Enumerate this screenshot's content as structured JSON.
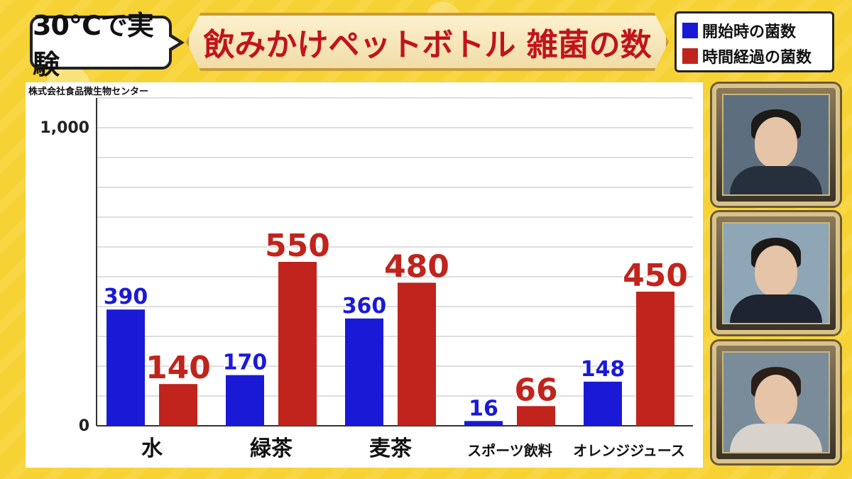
{
  "header": {
    "tag": "30℃で実験",
    "title": "飲みかけペットボトル 雑菌の数"
  },
  "legend": {
    "items": [
      {
        "label": "開始時の菌数",
        "color": "#1a1ad6"
      },
      {
        "label": "時間経過の菌数",
        "color": "#c0241c"
      }
    ]
  },
  "source": "株式会社食品微生物センター",
  "chart_data": {
    "type": "bar",
    "categories": [
      "水",
      "緑茶",
      "麦茶",
      "スポーツ飲料",
      "オレンジジュース"
    ],
    "series": [
      {
        "name": "開始時の菌数",
        "color": "#1a1ad6",
        "values": [
          390,
          170,
          360,
          16,
          148
        ]
      },
      {
        "name": "時間経過の菌数",
        "color": "#c0241c",
        "values": [
          140,
          550,
          480,
          66,
          450
        ]
      }
    ],
    "ylim": [
      0,
      1100
    ],
    "yticks": [
      {
        "value": 0,
        "label": "0"
      },
      {
        "value": 1000,
        "label": "1,000"
      }
    ],
    "gridlines": [
      0,
      100,
      200,
      300,
      400,
      500,
      600,
      700,
      800,
      900,
      1000,
      1100
    ],
    "grid": true,
    "legend": "top-right"
  }
}
